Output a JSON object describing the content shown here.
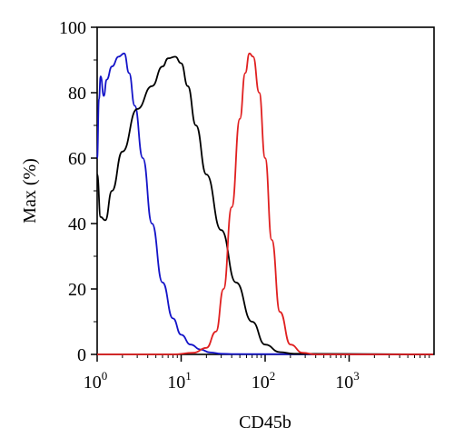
{
  "chart_data": {
    "type": "line",
    "title": "",
    "xlabel": "CD45b",
    "ylabel": "Max (%)",
    "xscale": "log",
    "xlim": [
      1,
      10000
    ],
    "ylim": [
      0,
      100
    ],
    "x_ticks": [
      {
        "base": "10",
        "exp": "0",
        "value": 1
      },
      {
        "base": "10",
        "exp": "1",
        "value": 10
      },
      {
        "base": "10",
        "exp": "2",
        "value": 100
      },
      {
        "base": "10",
        "exp": "3",
        "value": 1000
      }
    ],
    "y_ticks": [
      "0",
      "20",
      "40",
      "60",
      "80",
      "100"
    ],
    "grid": false,
    "legend": "none",
    "series": [
      {
        "color": "#1414c8",
        "points": [
          [
            1.0,
            60
          ],
          [
            1.05,
            78
          ],
          [
            1.1,
            85
          ],
          [
            1.2,
            79
          ],
          [
            1.3,
            84
          ],
          [
            1.5,
            88
          ],
          [
            1.8,
            91
          ],
          [
            2.1,
            92
          ],
          [
            2.4,
            86
          ],
          [
            2.8,
            76
          ],
          [
            3.5,
            60
          ],
          [
            4.5,
            40
          ],
          [
            6,
            22
          ],
          [
            8,
            11
          ],
          [
            10,
            6
          ],
          [
            13,
            3
          ],
          [
            17,
            1.5
          ],
          [
            22,
            0.6
          ],
          [
            30,
            0.2
          ],
          [
            40,
            0.1
          ],
          [
            10000,
            0
          ]
        ]
      },
      {
        "color": "#000000",
        "points": [
          [
            1.0,
            55
          ],
          [
            1.1,
            42
          ],
          [
            1.25,
            41
          ],
          [
            1.5,
            50
          ],
          [
            2,
            62
          ],
          [
            3,
            75
          ],
          [
            4.5,
            82
          ],
          [
            6,
            88
          ],
          [
            7,
            90.5
          ],
          [
            8.5,
            91
          ],
          [
            10,
            89
          ],
          [
            12,
            82
          ],
          [
            15,
            70
          ],
          [
            20,
            55
          ],
          [
            30,
            38
          ],
          [
            45,
            22
          ],
          [
            70,
            10
          ],
          [
            100,
            3
          ],
          [
            150,
            0.7
          ],
          [
            220,
            0.2
          ],
          [
            10000,
            0
          ]
        ]
      },
      {
        "color": "#e02020",
        "points": [
          [
            1,
            0
          ],
          [
            8,
            0
          ],
          [
            14,
            0.5
          ],
          [
            20,
            2
          ],
          [
            26,
            7
          ],
          [
            32,
            20
          ],
          [
            40,
            45
          ],
          [
            50,
            72
          ],
          [
            58,
            86
          ],
          [
            65,
            92
          ],
          [
            72,
            91
          ],
          [
            85,
            80
          ],
          [
            100,
            60
          ],
          [
            120,
            35
          ],
          [
            150,
            13
          ],
          [
            200,
            3
          ],
          [
            280,
            0.5
          ],
          [
            400,
            0
          ],
          [
            10000,
            0
          ]
        ]
      }
    ]
  }
}
